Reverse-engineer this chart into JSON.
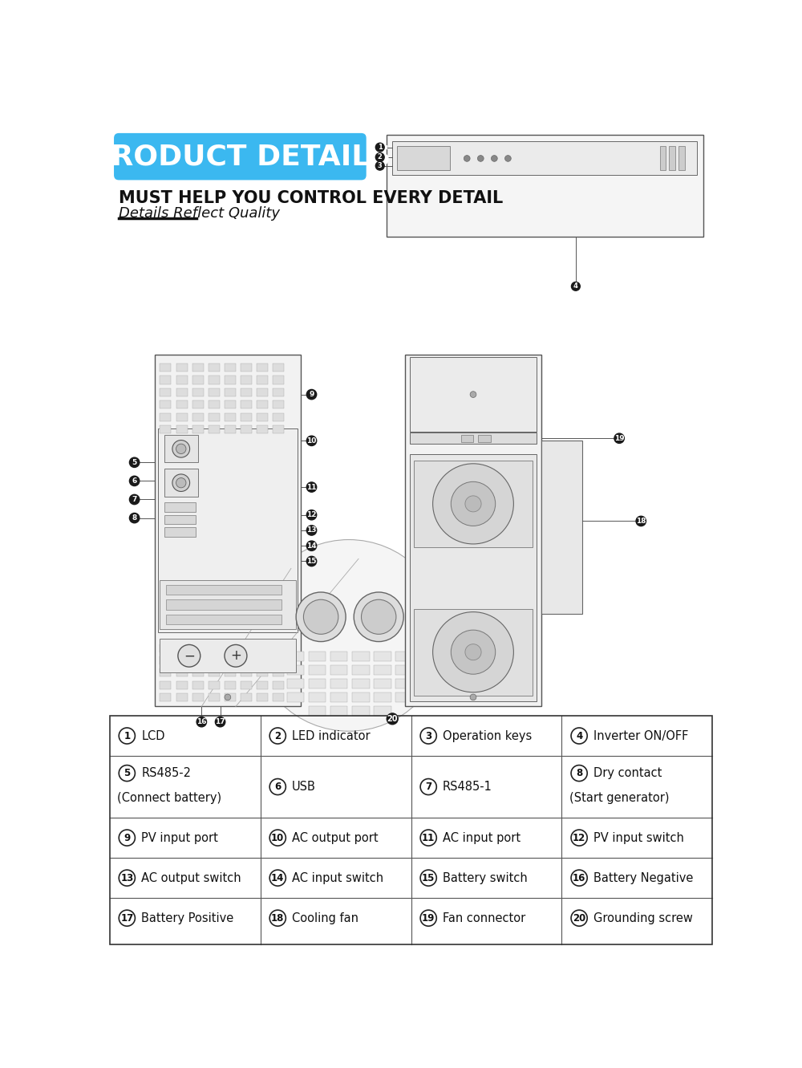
{
  "bg_color": "#ffffff",
  "title_badge_text": "PRODUCT DETAILS",
  "title_badge_color": "#3BB8F0",
  "title_badge_text_color": "#ffffff",
  "subtitle1": "MUST HELP YOU CONTROL EVERY DETAIL",
  "subtitle2": "Details Reflect Quality",
  "dot_color": "#1a1a1a",
  "dot_text_color": "#ffffff",
  "row_texts": [
    [
      [
        "1",
        "LCD"
      ],
      [
        "2",
        "LED indicator"
      ],
      [
        "3",
        "Operation keys"
      ],
      [
        "4",
        "Inverter ON/OFF"
      ]
    ],
    [
      [
        "5",
        "RS485-2\n(Connect battery)"
      ],
      [
        "6",
        "USB"
      ],
      [
        "7",
        "RS485-1"
      ],
      [
        "8",
        "Dry contact\n(Start generator)"
      ]
    ],
    [
      [
        "9",
        "PV input port"
      ],
      [
        "10",
        "AC output port"
      ],
      [
        "11",
        "AC input port"
      ],
      [
        "12",
        "PV input switch"
      ]
    ],
    [
      [
        "13",
        "AC output switch"
      ],
      [
        "14",
        "AC input switch"
      ],
      [
        "15",
        "Battery switch"
      ],
      [
        "16",
        "Battery Negative"
      ]
    ],
    [
      [
        "17",
        "Battery Positive"
      ],
      [
        "18",
        "Cooling fan"
      ],
      [
        "19",
        "Fan connector"
      ],
      [
        "20",
        "Grounding screw"
      ]
    ]
  ]
}
